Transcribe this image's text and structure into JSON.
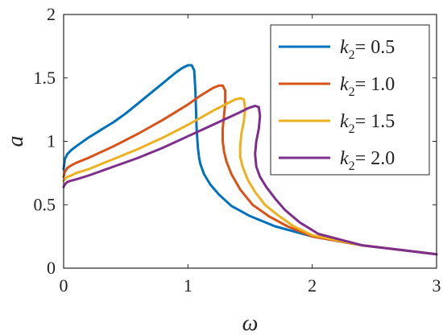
{
  "chart_data": {
    "type": "line",
    "xlabel": "ω",
    "ylabel": "a",
    "xlim": [
      0,
      3
    ],
    "ylim": [
      0,
      2
    ],
    "xticks": [
      0,
      1,
      2,
      3
    ],
    "xtick_labels": [
      "0",
      "1",
      "2",
      "3"
    ],
    "yticks": [
      0,
      0.5,
      1,
      1.5,
      2
    ],
    "ytick_labels": [
      "0",
      "0.5",
      "1",
      "1.5",
      "2"
    ],
    "grid": false,
    "box": true,
    "legend_position": "top-right",
    "series": [
      {
        "name": "k2 = 0.5",
        "legend_k": "k",
        "legend_sub": "2",
        "legend_value": "= 0.5",
        "color": "#0072BD",
        "x": [
          0,
          0.01,
          0.03,
          0.06,
          0.1,
          0.2,
          0.3,
          0.4,
          0.5,
          0.6,
          0.7,
          0.8,
          0.9,
          0.95,
          1.0,
          1.03,
          1.05,
          1.06,
          1.07,
          1.08,
          1.09,
          1.1,
          1.13,
          1.18,
          1.25,
          1.35,
          1.5,
          1.7,
          2.0,
          2.4,
          3.0
        ],
        "y": [
          0.78,
          0.86,
          0.9,
          0.93,
          0.96,
          1.03,
          1.09,
          1.15,
          1.22,
          1.3,
          1.38,
          1.46,
          1.54,
          1.575,
          1.6,
          1.6,
          1.56,
          1.4,
          1.1,
          0.95,
          0.87,
          0.82,
          0.74,
          0.66,
          0.58,
          0.49,
          0.41,
          0.33,
          0.25,
          0.18,
          0.11
        ]
      },
      {
        "name": "k2 = 1.0",
        "legend_k": "k",
        "legend_sub": "2",
        "legend_value": "= 1.0",
        "color": "#D95319",
        "x": [
          0,
          0.01,
          0.03,
          0.06,
          0.1,
          0.2,
          0.4,
          0.6,
          0.8,
          1.0,
          1.1,
          1.2,
          1.25,
          1.28,
          1.3,
          1.3,
          1.29,
          1.28,
          1.28,
          1.29,
          1.31,
          1.35,
          1.42,
          1.52,
          1.65,
          1.8,
          2.0,
          2.4,
          3.0
        ],
        "y": [
          0.72,
          0.76,
          0.79,
          0.81,
          0.83,
          0.87,
          0.96,
          1.06,
          1.17,
          1.29,
          1.36,
          1.42,
          1.44,
          1.44,
          1.4,
          1.3,
          1.2,
          1.1,
          1.0,
          0.92,
          0.84,
          0.74,
          0.62,
          0.5,
          0.41,
          0.33,
          0.25,
          0.18,
          0.11
        ]
      },
      {
        "name": "k2 = 1.5",
        "legend_k": "k",
        "legend_sub": "2",
        "legend_value": "= 1.5",
        "color": "#EDB120",
        "x": [
          0,
          0.01,
          0.03,
          0.06,
          0.1,
          0.2,
          0.4,
          0.6,
          0.8,
          1.0,
          1.2,
          1.3,
          1.38,
          1.42,
          1.45,
          1.46,
          1.45,
          1.43,
          1.42,
          1.42,
          1.44,
          1.48,
          1.54,
          1.62,
          1.72,
          1.85,
          2.0,
          2.4,
          3.0
        ],
        "y": [
          0.69,
          0.7,
          0.72,
          0.73,
          0.75,
          0.78,
          0.86,
          0.94,
          1.03,
          1.13,
          1.24,
          1.29,
          1.33,
          1.34,
          1.33,
          1.26,
          1.16,
          1.06,
          0.96,
          0.88,
          0.8,
          0.7,
          0.6,
          0.5,
          0.42,
          0.33,
          0.26,
          0.18,
          0.11
        ]
      },
      {
        "name": "k2 = 2.0",
        "legend_k": "k",
        "legend_sub": "2",
        "legend_value": "= 2.0",
        "color": "#7E2F8E",
        "x": [
          0,
          0.01,
          0.03,
          0.06,
          0.1,
          0.2,
          0.4,
          0.6,
          0.8,
          1.0,
          1.2,
          1.4,
          1.48,
          1.54,
          1.57,
          1.58,
          1.57,
          1.55,
          1.54,
          1.55,
          1.58,
          1.63,
          1.7,
          1.78,
          1.9,
          2.05,
          2.4,
          3.0
        ],
        "y": [
          0.64,
          0.66,
          0.68,
          0.69,
          0.7,
          0.73,
          0.8,
          0.87,
          0.95,
          1.04,
          1.13,
          1.22,
          1.26,
          1.28,
          1.27,
          1.2,
          1.1,
          1.0,
          0.9,
          0.8,
          0.72,
          0.64,
          0.55,
          0.46,
          0.36,
          0.27,
          0.18,
          0.11
        ]
      }
    ]
  }
}
